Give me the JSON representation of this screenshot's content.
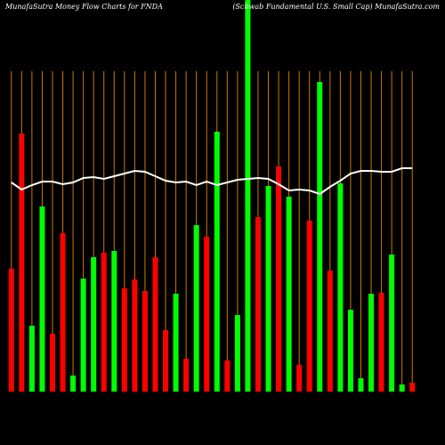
{
  "chart_data": {
    "type": "bar",
    "title": "MunafaSutra  Money Flow  Charts for FNDA",
    "subtitle": "(Schwab Fundamental U.S. Small Cap) MunafaSutra.com",
    "values": [
      138,
      290,
      74,
      208,
      65,
      178,
      18,
      127,
      151,
      156,
      158,
      116,
      126,
      113,
      151,
      69,
      110,
      37,
      187,
      174,
      292,
      35,
      86,
      440,
      196,
      231,
      253,
      219,
      30,
      192,
      348,
      136,
      234,
      92,
      15,
      110,
      111,
      154,
      8,
      10
    ],
    "colors": [
      "#ff0000",
      "#ff0000",
      "#00ff00",
      "#00ff00",
      "#ff0000",
      "#ff0000",
      "#00ff00",
      "#00ff00",
      "#00ff00",
      "#ff0000",
      "#00ff00",
      "#ff0000",
      "#ff0000",
      "#ff0000",
      "#ff0000",
      "#ff0000",
      "#00ff00",
      "#ff0000",
      "#00ff00",
      "#ff0000",
      "#00ff00",
      "#ff0000",
      "#00ff00",
      "#00ff00",
      "#ff0000",
      "#00ff00",
      "#ff0000",
      "#00ff00",
      "#ff0000",
      "#ff0000",
      "#00ff00",
      "#ff0000",
      "#00ff00",
      "#00ff00",
      "#00ff00",
      "#00ff00",
      "#ff0000",
      "#00ff00",
      "#00ff00",
      "#ff0000"
    ],
    "line": {
      "color": "#ffffff",
      "values": [
        235,
        227,
        232,
        236,
        236,
        233,
        235,
        240,
        241,
        239,
        242,
        245,
        248,
        247,
        242,
        237,
        235,
        236,
        232,
        236,
        232,
        235,
        238,
        239,
        240,
        239,
        233,
        226,
        227,
        226,
        222,
        230,
        237,
        245,
        248,
        248,
        247,
        247,
        251,
        251
      ]
    },
    "gridline_color": "#cc7a00",
    "ylim": [
      0,
      440
    ]
  }
}
